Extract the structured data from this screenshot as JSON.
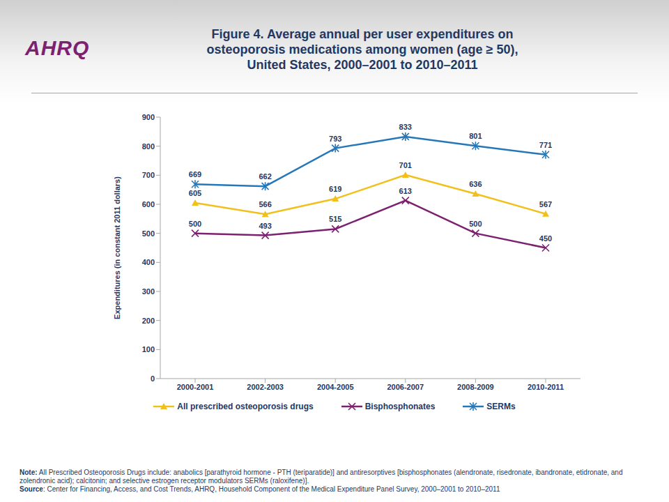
{
  "logo": "AHRQ",
  "chart_data": {
    "type": "line",
    "title": [
      "Figure 4. Average annual per user expenditures on",
      "osteoporosis medications among women (age ≥ 50),",
      "United States, 2000–2001 to 2010–2011"
    ],
    "y_label": "Expenditures (in constant 2011 dollars)",
    "categories": [
      "2000-2001",
      "2002-2003",
      "2004-2005",
      "2006-2007",
      "2008-2009",
      "2010-2011"
    ],
    "series": [
      {
        "name": "All prescribed osteoporosis drugs",
        "color": "#F2C01C",
        "marker": "triangle",
        "values": [
          605,
          566,
          619,
          701,
          636,
          567
        ]
      },
      {
        "name": "Bisphosphonates",
        "color": "#7B2170",
        "marker": "x",
        "values": [
          500,
          493,
          515,
          613,
          500,
          450
        ]
      },
      {
        "name": "SERMs",
        "color": "#2677B8",
        "marker": "star",
        "values": [
          669,
          662,
          793,
          833,
          801,
          771
        ]
      }
    ],
    "ylim": [
      0,
      900
    ],
    "yticks": [
      0,
      100,
      200,
      300,
      400,
      500,
      600,
      700,
      800,
      900
    ],
    "grid": false,
    "data_labels": true,
    "legend": "bottom"
  },
  "note": {
    "label": "Note:",
    "text": "All Prescribed Osteoporosis Drugs include: anabolics [parathyroid hormone - PTH (teriparatide)] and antiresorptives [bisphosphonates (alendronate, risedronate, ibandronate, etidronate, and zolendronic acid); calcitonin; and selective estrogen receptor modulators SERMs (raloxifene)]."
  },
  "source": {
    "label": "Source",
    "text": ": Center for Financing, Access, and Cost Trends, AHRQ, Household Component of the Medical Expenditure Panel Survey, 2000–2001 to 2010–2011"
  }
}
